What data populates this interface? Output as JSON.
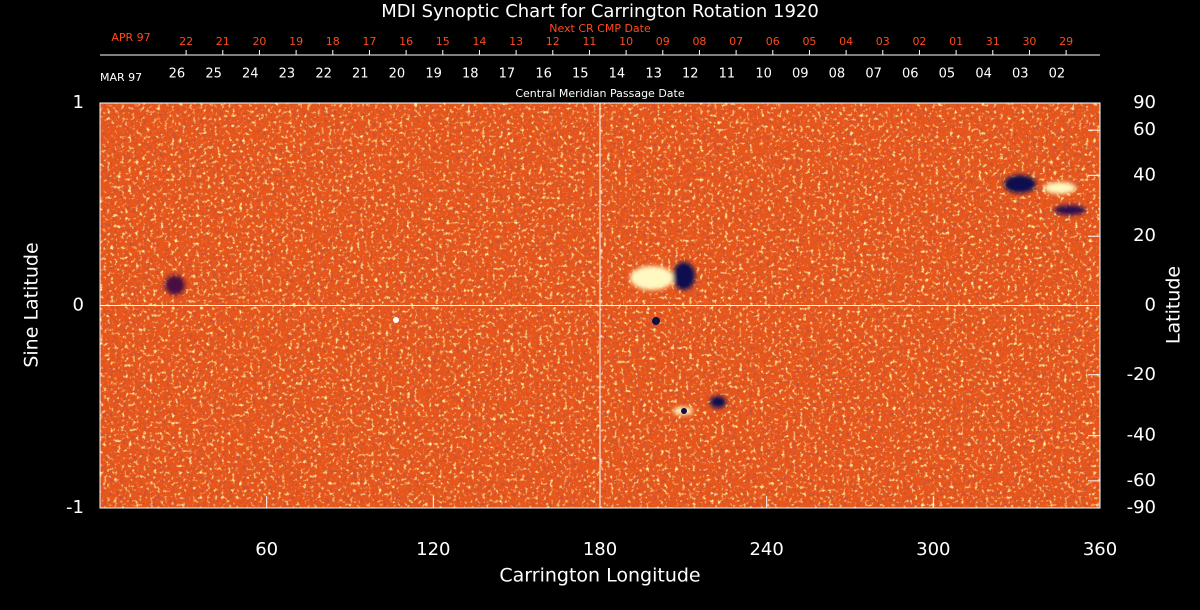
{
  "chart_data": {
    "type": "synoptic-map",
    "title": "MDI Synoptic Chart for Carrington Rotation 1920",
    "xlabel": "Carrington Longitude",
    "ylabel": "Sine Latitude",
    "y2label": "Latitude",
    "xlim": [
      0,
      360
    ],
    "xticks": [
      60,
      120,
      180,
      240,
      300,
      360
    ],
    "ylim": [
      -1,
      1
    ],
    "yticks": [
      -1,
      0,
      1
    ],
    "y2lim": [
      -90,
      90
    ],
    "y2scale": "sine",
    "y2ticks": [
      90,
      60,
      40,
      20,
      0,
      -20,
      -40,
      -60,
      -90
    ],
    "crosshair": true,
    "date_axes": [
      {
        "label": "Next CR CMP Date",
        "month": "APR 97",
        "color": "#ff4a1c",
        "dates": [
          "22",
          "21",
          "20",
          "19",
          "18",
          "17",
          "16",
          "15",
          "14",
          "13",
          "12",
          "11",
          "10",
          "09",
          "08",
          "07",
          "06",
          "05",
          "04",
          "03",
          "02",
          "01",
          "31",
          "30",
          "29"
        ],
        "x": [
          31.0,
          44.2,
          57.4,
          70.6,
          83.8,
          97.0,
          110.2,
          123.4,
          136.6,
          149.8,
          163.0,
          176.2,
          189.4,
          202.6,
          215.8,
          229.0,
          242.2,
          255.4,
          268.6,
          281.8,
          295.0,
          308.2,
          321.4,
          334.6,
          347.8
        ]
      },
      {
        "label": "Central Meridian Passage Date",
        "month": "MAR 97",
        "color": "#ffffff",
        "dates": [
          "26",
          "25",
          "24",
          "23",
          "22",
          "21",
          "20",
          "19",
          "18",
          "17",
          "16",
          "15",
          "14",
          "13",
          "12",
          "11",
          "10",
          "09",
          "08",
          "07",
          "06",
          "05",
          "04",
          "03",
          "02"
        ],
        "x": [
          27.7,
          40.9,
          54.1,
          67.3,
          80.5,
          93.7,
          106.9,
          120.1,
          133.3,
          146.5,
          159.7,
          172.9,
          186.1,
          199.3,
          212.5,
          225.7,
          238.9,
          252.1,
          265.3,
          278.5,
          291.7,
          304.9,
          318.1,
          331.3,
          344.5
        ]
      }
    ]
  }
}
